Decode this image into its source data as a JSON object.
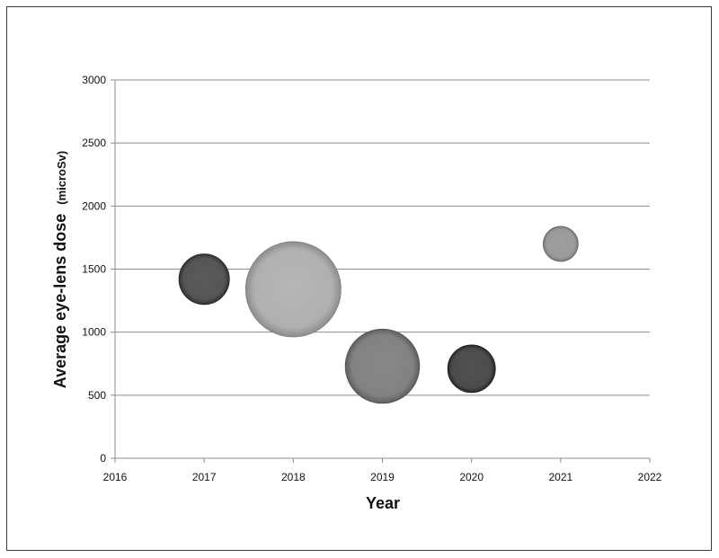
{
  "chart_data": {
    "type": "bubble",
    "title": "",
    "xlabel": "Year",
    "ylabel_main": "Average eye-lens dose",
    "ylabel_unit": "(microSv)",
    "xlim": [
      2016,
      2022
    ],
    "ylim": [
      0,
      3000
    ],
    "x_ticks": [
      "2016",
      "2017",
      "2018",
      "2019",
      "2020",
      "2021",
      "2022"
    ],
    "y_ticks": [
      "0",
      "500",
      "1000",
      "1500",
      "2000",
      "2500",
      "3000"
    ],
    "grid": true,
    "legend": "none",
    "points": [
      {
        "x": 2017,
        "y": 1420,
        "size": 36,
        "color": "#555555"
      },
      {
        "x": 2018,
        "y": 1340,
        "size": 68,
        "color": "#b0b0b0"
      },
      {
        "x": 2019,
        "y": 730,
        "size": 53,
        "color": "#828282"
      },
      {
        "x": 2020,
        "y": 710,
        "size": 34,
        "color": "#4c4c4c"
      },
      {
        "x": 2021,
        "y": 1700,
        "size": 25,
        "color": "#9a9a9a"
      }
    ]
  }
}
